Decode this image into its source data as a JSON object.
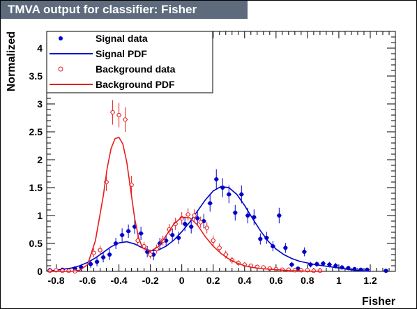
{
  "title": "TMVA output for classifier: Fisher",
  "colors": {
    "signal": "#0000cc",
    "background": "#e81c1c",
    "title_bg": "#5d6b7d"
  },
  "chart_data": {
    "type": "scatter",
    "title": "TMVA output for classifier: Fisher",
    "xlabel": "Fisher",
    "ylabel": "Normalized",
    "xlim": [
      -0.86,
      1.36
    ],
    "ylim": [
      0,
      4.3
    ],
    "xticks": [
      "-0.8",
      "-0.6",
      "-0.4",
      "-0.2",
      "0",
      "0.2",
      "0.4",
      "0.6",
      "0.8",
      "1",
      "1.2"
    ],
    "xtick_values": [
      -0.8,
      -0.6,
      -0.4,
      -0.2,
      0,
      0.2,
      0.4,
      0.6,
      0.8,
      1,
      1.2
    ],
    "yticks": [
      "0",
      "0.5",
      "1",
      "1.5",
      "2",
      "2.5",
      "3",
      "3.5",
      "4"
    ],
    "ytick_values": [
      0,
      0.5,
      1,
      1.5,
      2,
      2.5,
      3,
      3.5,
      4
    ],
    "legend": {
      "position": "top-left",
      "entries": [
        {
          "label": "Signal data",
          "style": "filled-dot",
          "color": "#0000cc"
        },
        {
          "label": "Signal PDF",
          "style": "line",
          "color": "#0000cc"
        },
        {
          "label": "Background data",
          "style": "open-circle",
          "color": "#e81c1c"
        },
        {
          "label": "Background PDF",
          "style": "line",
          "color": "#e81c1c"
        }
      ]
    },
    "series": [
      {
        "name": "Signal data",
        "kind": "points",
        "marker": "filled",
        "color": "#0000cc",
        "x": [
          -0.84,
          -0.76,
          -0.68,
          -0.64,
          -0.58,
          -0.54,
          -0.5,
          -0.46,
          -0.42,
          -0.38,
          -0.34,
          -0.3,
          -0.26,
          -0.22,
          -0.18,
          -0.14,
          -0.1,
          -0.06,
          -0.02,
          0.02,
          0.06,
          0.1,
          0.14,
          0.18,
          0.22,
          0.26,
          0.3,
          0.34,
          0.38,
          0.42,
          0.46,
          0.5,
          0.54,
          0.58,
          0.62,
          0.66,
          0.7,
          0.74,
          0.78,
          0.82,
          0.86,
          0.9,
          0.94,
          0.98,
          1.02,
          1.06,
          1.1,
          1.14,
          1.18,
          1.3
        ],
        "y": [
          0.02,
          0.03,
          0.05,
          0.07,
          0.13,
          0.17,
          0.25,
          0.3,
          0.5,
          0.65,
          0.72,
          0.8,
          0.68,
          0.35,
          0.3,
          0.5,
          0.55,
          0.65,
          0.6,
          0.85,
          0.8,
          0.95,
          0.9,
          1.22,
          1.65,
          1.5,
          1.38,
          1.05,
          1.38,
          1.0,
          0.97,
          0.58,
          0.6,
          0.45,
          1.0,
          0.42,
          0.12,
          0.05,
          0.35,
          0.12,
          0.13,
          0.14,
          0.12,
          0.1,
          0.07,
          0.06,
          0.04,
          0.03,
          0.03,
          0.01
        ],
        "yerr": [
          0.02,
          0.03,
          0.04,
          0.05,
          0.07,
          0.08,
          0.09,
          0.1,
          0.1,
          0.12,
          0.12,
          0.13,
          0.12,
          0.1,
          0.1,
          0.1,
          0.1,
          0.12,
          0.11,
          0.13,
          0.12,
          0.13,
          0.13,
          0.15,
          0.18,
          0.17,
          0.16,
          0.14,
          0.16,
          0.14,
          0.14,
          0.1,
          0.11,
          0.09,
          0.14,
          0.09,
          0.05,
          0.03,
          0.08,
          0.05,
          0.05,
          0.05,
          0.05,
          0.05,
          0.04,
          0.04,
          0.03,
          0.03,
          0.03,
          0.02
        ]
      },
      {
        "name": "Signal PDF",
        "kind": "curve",
        "color": "#0000cc",
        "x": [
          -0.85,
          -0.8,
          -0.75,
          -0.7,
          -0.65,
          -0.6,
          -0.55,
          -0.5,
          -0.45,
          -0.4,
          -0.35,
          -0.3,
          -0.25,
          -0.2,
          -0.15,
          -0.1,
          -0.05,
          0,
          0.05,
          0.1,
          0.15,
          0.2,
          0.25,
          0.3,
          0.35,
          0.4,
          0.45,
          0.5,
          0.55,
          0.6,
          0.65,
          0.7,
          0.75,
          0.8,
          0.85,
          0.9,
          0.95,
          1.0,
          1.05,
          1.1,
          1.15,
          1.2
        ],
        "y": [
          0.01,
          0.02,
          0.04,
          0.06,
          0.1,
          0.16,
          0.24,
          0.34,
          0.44,
          0.51,
          0.53,
          0.49,
          0.42,
          0.37,
          0.38,
          0.45,
          0.56,
          0.71,
          0.88,
          1.08,
          1.28,
          1.44,
          1.52,
          1.5,
          1.38,
          1.18,
          0.95,
          0.73,
          0.54,
          0.4,
          0.3,
          0.23,
          0.18,
          0.15,
          0.12,
          0.1,
          0.08,
          0.06,
          0.04,
          0.02,
          0.01,
          0.0
        ]
      },
      {
        "name": "Background data",
        "kind": "points",
        "marker": "open",
        "color": "#e81c1c",
        "x": [
          -0.84,
          -0.8,
          -0.76,
          -0.72,
          -0.68,
          -0.56,
          -0.52,
          -0.48,
          -0.44,
          -0.4,
          -0.36,
          -0.32,
          -0.28,
          -0.24,
          -0.2,
          -0.16,
          -0.12,
          -0.08,
          -0.04,
          0,
          0.04,
          0.08,
          0.12,
          0.16,
          0.2,
          0.24,
          0.28,
          0.32,
          0.36,
          0.4,
          0.44,
          0.48,
          0.52,
          0.56,
          0.6,
          0.64,
          0.68,
          0.72,
          0.76,
          0.8,
          0.84,
          0.88
        ],
        "y": [
          0.01,
          0.02,
          0.01,
          0.01,
          0.0,
          0.33,
          0.38,
          1.6,
          2.85,
          2.8,
          2.72,
          1.55,
          0.55,
          0.45,
          0.3,
          0.4,
          0.55,
          0.75,
          0.85,
          0.95,
          1.02,
          1.0,
          0.88,
          0.78,
          0.55,
          0.42,
          0.3,
          0.2,
          0.15,
          0.12,
          0.1,
          0.08,
          0.07,
          0.05,
          0.04,
          0.03,
          0.03,
          0.02,
          0.02,
          0.02,
          0.01,
          0.01
        ],
        "yerr": [
          0.01,
          0.02,
          0.01,
          0.01,
          0.0,
          0.08,
          0.08,
          0.16,
          0.22,
          0.22,
          0.22,
          0.16,
          0.09,
          0.08,
          0.07,
          0.08,
          0.09,
          0.1,
          0.11,
          0.11,
          0.11,
          0.11,
          0.1,
          0.1,
          0.09,
          0.08,
          0.07,
          0.06,
          0.05,
          0.04,
          0.04,
          0.04,
          0.03,
          0.03,
          0.03,
          0.02,
          0.02,
          0.02,
          0.02,
          0.02,
          0.01,
          0.01
        ]
      },
      {
        "name": "Background PDF",
        "kind": "curve",
        "color": "#e81c1c",
        "x": [
          -0.85,
          -0.8,
          -0.75,
          -0.7,
          -0.65,
          -0.6,
          -0.55,
          -0.5,
          -0.475,
          -0.45,
          -0.425,
          -0.4,
          -0.375,
          -0.35,
          -0.325,
          -0.3,
          -0.275,
          -0.25,
          -0.2,
          -0.15,
          -0.1,
          -0.05,
          0,
          0.05,
          0.1,
          0.15,
          0.2,
          0.25,
          0.3,
          0.35,
          0.4,
          0.45,
          0.5,
          0.55,
          0.6,
          0.65,
          0.7,
          0.75,
          0.8,
          0.85,
          0.9
        ],
        "y": [
          0.0,
          0.0,
          0.0,
          0.0,
          0.02,
          0.12,
          0.55,
          1.35,
          1.85,
          2.2,
          2.38,
          2.4,
          2.28,
          1.95,
          1.45,
          0.95,
          0.6,
          0.42,
          0.36,
          0.44,
          0.64,
          0.85,
          0.97,
          0.96,
          0.83,
          0.62,
          0.45,
          0.32,
          0.22,
          0.15,
          0.1,
          0.07,
          0.05,
          0.04,
          0.03,
          0.02,
          0.01,
          0.01,
          0.0,
          0.0,
          0.0
        ]
      }
    ]
  }
}
